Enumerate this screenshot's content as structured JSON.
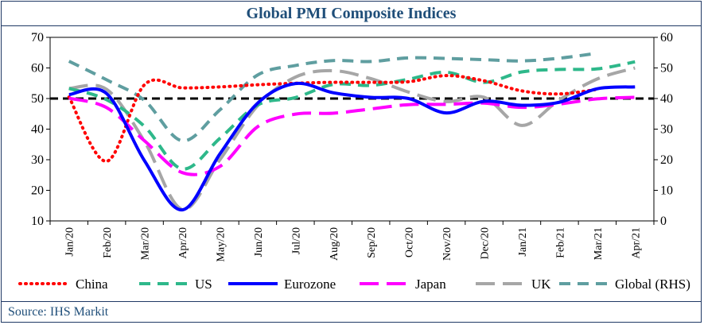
{
  "title": "Global PMI Composite Indices",
  "source": "Source: IHS Markit",
  "chart_data": {
    "type": "line",
    "categories": [
      "Jan/20",
      "Feb/20",
      "Mar/20",
      "Apr/20",
      "May/20",
      "Jun/20",
      "Jul/20",
      "Aug/20",
      "Sep/20",
      "Oct/20",
      "Nov/20",
      "Dec/20",
      "Jan/21",
      "Feb/21",
      "Mar/21",
      "Apr/21"
    ],
    "left_axis": {
      "ylim": [
        10,
        70
      ],
      "ticks": [
        10,
        20,
        30,
        40,
        50,
        60,
        70
      ]
    },
    "right_axis": {
      "ylim": [
        0,
        60
      ],
      "ticks": [
        0,
        10,
        20,
        30,
        40,
        50,
        60
      ]
    },
    "reference_line": {
      "value": 50,
      "axis": "left"
    },
    "legend_position": "bottom",
    "series": [
      {
        "name": "China",
        "axis": "left",
        "color": "#ff0000",
        "style": "dotted",
        "values": [
          50.5,
          29.5,
          54.5,
          53.5,
          53.8,
          54.5,
          55.0,
          55.3,
          55.3,
          55.5,
          57.5,
          55.8,
          52.5,
          51.5,
          53.0,
          null
        ]
      },
      {
        "name": "US",
        "axis": "left",
        "color": "#2eb88a",
        "style": "dashed",
        "values": [
          53.3,
          49.6,
          40.9,
          27.0,
          37.0,
          47.9,
          50.3,
          54.6,
          54.3,
          56.3,
          58.6,
          55.3,
          58.7,
          59.5,
          59.7,
          62.0
        ]
      },
      {
        "name": "Eurozone",
        "axis": "left",
        "color": "#0000ff",
        "style": "solid",
        "values": [
          51.3,
          51.6,
          29.7,
          13.6,
          31.9,
          48.5,
          54.9,
          51.9,
          50.4,
          50.0,
          45.3,
          49.1,
          47.8,
          48.8,
          53.2,
          53.8
        ]
      },
      {
        "name": "Japan",
        "axis": "left",
        "color": "#ff00ff",
        "style": "longdash",
        "values": [
          50.1,
          47.0,
          36.2,
          25.8,
          27.8,
          40.8,
          44.9,
          45.2,
          46.6,
          48.0,
          48.1,
          48.5,
          47.1,
          48.2,
          49.9,
          50.4
        ]
      },
      {
        "name": "UK",
        "axis": "left",
        "color": "#a6a6a6",
        "style": "longdash",
        "values": [
          53.3,
          53.0,
          36.0,
          13.8,
          30.0,
          47.7,
          57.0,
          59.1,
          56.5,
          52.1,
          49.0,
          50.4,
          41.2,
          49.6,
          56.4,
          60.0
        ]
      },
      {
        "name": "Global (RHS)",
        "axis": "right",
        "color": "#5f9ea0",
        "style": "dashed",
        "values": [
          52.2,
          46.1,
          39.4,
          26.2,
          36.3,
          47.7,
          50.8,
          52.4,
          52.1,
          53.3,
          53.1,
          52.7,
          52.3,
          53.2,
          54.8,
          null
        ]
      }
    ]
  }
}
